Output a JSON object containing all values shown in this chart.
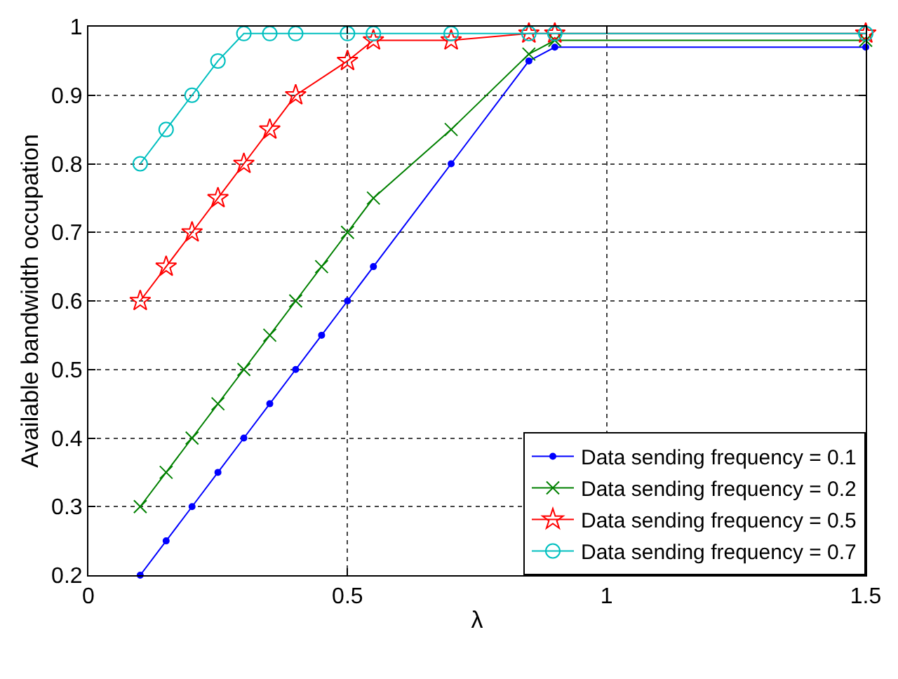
{
  "chart_data": {
    "type": "line",
    "xlabel": "λ",
    "ylabel": "Available bandwidth occupation",
    "xlim": [
      0,
      1.5
    ],
    "xticks": [
      0,
      0.5,
      1,
      1.5
    ],
    "ylim": [
      0.2,
      1
    ],
    "yticks": [
      0.2,
      0.3,
      0.4,
      0.5,
      0.6,
      0.7,
      0.8,
      0.9,
      1
    ],
    "grid": true,
    "legend": "bottom right",
    "line_style": "solid",
    "series": [
      {
        "name": "Data sending frequency = 0.1",
        "color": "#0000ff",
        "marker": "circle",
        "x": [
          0.1,
          0.15,
          0.2,
          0.25,
          0.3,
          0.35,
          0.4,
          0.45,
          0.5,
          0.55,
          0.7,
          0.85,
          0.9,
          1.5
        ],
        "values": [
          0.2,
          0.25,
          0.3,
          0.35,
          0.4,
          0.45,
          0.5,
          0.55,
          0.6,
          0.65,
          0.8,
          0.95,
          0.97,
          0.97
        ]
      },
      {
        "name": "Data sending frequency = 0.2",
        "color": "#008000",
        "marker": "cross",
        "x": [
          0.1,
          0.15,
          0.2,
          0.25,
          0.3,
          0.35,
          0.4,
          0.45,
          0.5,
          0.55,
          0.7,
          0.85,
          0.9,
          1.5
        ],
        "values": [
          0.3,
          0.35,
          0.4,
          0.45,
          0.5,
          0.55,
          0.6,
          0.65,
          0.7,
          0.75,
          0.85,
          0.96,
          0.98,
          0.98
        ]
      },
      {
        "name": "Data sending frequency = 0.5",
        "color": "#ff0000",
        "marker": "star",
        "x": [
          0.1,
          0.15,
          0.2,
          0.25,
          0.3,
          0.35,
          0.4,
          0.5,
          0.55,
          0.7,
          0.85,
          0.9,
          1.5
        ],
        "values": [
          0.6,
          0.65,
          0.7,
          0.75,
          0.8,
          0.85,
          0.9,
          0.95,
          0.98,
          0.98,
          0.99,
          0.99,
          0.99
        ]
      },
      {
        "name": "Data sending frequency = 0.7",
        "color": "#00bfbf",
        "marker": "circle",
        "x": [
          0.1,
          0.15,
          0.2,
          0.25,
          0.3,
          0.35,
          0.4,
          0.5,
          0.55,
          0.7,
          0.85,
          0.9,
          1.5
        ],
        "values": [
          0.8,
          0.85,
          0.9,
          0.95,
          0.99,
          0.99,
          0.99,
          0.99,
          0.99,
          0.99,
          0.99,
          0.99,
          0.99
        ]
      }
    ]
  }
}
